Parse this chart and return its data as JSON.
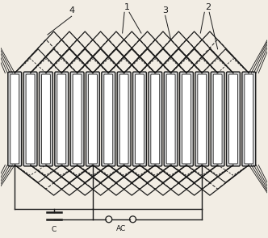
{
  "fig_width": 3.32,
  "fig_height": 2.95,
  "dpi": 100,
  "bg_color": "#f2ede4",
  "line_color": "#1a1a1a",
  "num_slots": 16,
  "label_1": "1",
  "label_2": "2",
  "label_3": "3",
  "label_4": "4",
  "label_C": "C",
  "label_AC": "AC"
}
